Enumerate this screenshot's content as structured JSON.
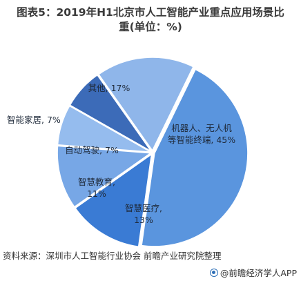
{
  "title_line1": "图表5：2019年H1北京市人工智能产业重点应用场景比",
  "title_line2": "重(单位：%)",
  "chart_data": {
    "type": "pie",
    "title": "图表5：2019年H1北京市人工智能产业重点应用场景比重(单位：%)",
    "unit": "%",
    "slices": [
      {
        "label_lines": [
          "机器人、无人机",
          "等智能终端, 45%"
        ],
        "name": "机器人、无人机等智能终端",
        "value": 45,
        "color": "#5a95de"
      },
      {
        "label_lines": [
          "智慧医疗,",
          "13%"
        ],
        "name": "智慧医疗",
        "value": 13,
        "color": "#3a7bd4"
      },
      {
        "label_lines": [
          "智慧教育,",
          "11%"
        ],
        "name": "智慧教育",
        "value": 11,
        "color": "#77a7e6"
      },
      {
        "label_lines": [
          "自动驾驶, 7%"
        ],
        "name": "自动驾驶",
        "value": 7,
        "color": "#95bcee"
      },
      {
        "label_lines": [
          "智能家居, 7%"
        ],
        "name": "智能家居",
        "value": 7,
        "color": "#3c6bb8"
      },
      {
        "label_lines": [
          "其他, 17%"
        ],
        "name": "其他",
        "value": 17,
        "color": "#8fb6ea"
      }
    ]
  },
  "source": "资料来源：深圳市人工智能行业协会 前瞻产业研究院整理",
  "brand": "@前瞻经济学人APP"
}
